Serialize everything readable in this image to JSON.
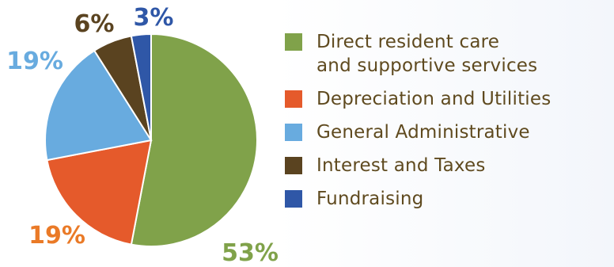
{
  "chart_data": {
    "type": "pie",
    "categories": [
      "Direct resident care\n and supportive services",
      "Depreciation and Utilities",
      "General Administrative",
      "Interest and Taxes",
      "Fundraising"
    ],
    "values": [
      53,
      19,
      19,
      6,
      3
    ],
    "labels": [
      "53%",
      "19%",
      "19%",
      "6%",
      "3%"
    ],
    "colors": [
      "#80a24a",
      "#e55a2b",
      "#68abdf",
      "#5a4320",
      "#2f57a7"
    ],
    "label_colors": [
      "#80a24a",
      "#ea7a27",
      "#68abdf",
      "#5a4320",
      "#2f57a7"
    ],
    "legend_position": "right",
    "title": "",
    "xlabel": "",
    "ylabel": ""
  }
}
